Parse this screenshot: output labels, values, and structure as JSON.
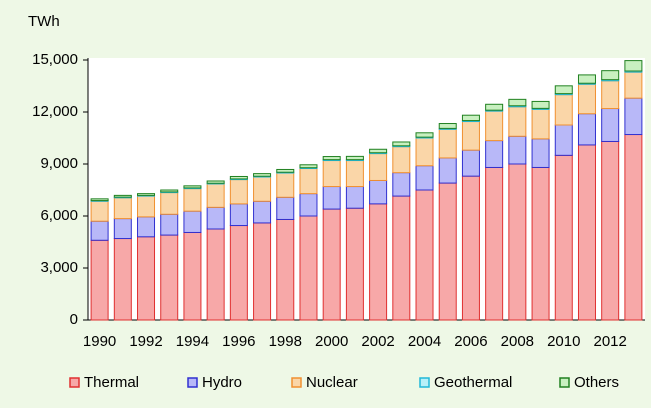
{
  "chart_data": {
    "type": "stacked_bar",
    "y_label": "TWh",
    "categories": [
      "1990",
      null,
      "1992",
      null,
      "1994",
      null,
      "1996",
      null,
      "1998",
      null,
      "2000",
      null,
      "2002",
      null,
      "2004",
      null,
      "2006",
      null,
      "2008",
      null,
      "2010",
      null,
      "2012",
      null
    ],
    "series": [
      {
        "name": "Thermal",
        "color": "#f7a8a8",
        "edge": "#e03030",
        "values": [
          4600,
          4700,
          4800,
          4900,
          5050,
          5250,
          5450,
          5600,
          5800,
          6000,
          6400,
          6450,
          6700,
          7150,
          7500,
          7900,
          8300,
          8800,
          9000,
          8800,
          9500,
          10100,
          10300,
          10700
        ]
      },
      {
        "name": "Hydro",
        "color": "#b8b8f8",
        "edge": "#3030d0",
        "values": [
          1100,
          1150,
          1150,
          1200,
          1230,
          1250,
          1250,
          1250,
          1280,
          1290,
          1300,
          1250,
          1350,
          1350,
          1400,
          1450,
          1500,
          1550,
          1600,
          1650,
          1750,
          1800,
          1900,
          2100
        ]
      },
      {
        "name": "Nuclear",
        "color": "#fad6a8",
        "edge": "#f09030",
        "values": [
          1150,
          1200,
          1200,
          1250,
          1300,
          1350,
          1400,
          1400,
          1400,
          1450,
          1500,
          1500,
          1550,
          1500,
          1600,
          1650,
          1650,
          1700,
          1700,
          1700,
          1750,
          1700,
          1600,
          1500
        ]
      },
      {
        "name": "Geothermal",
        "color": "#b8f0f8",
        "edge": "#20b8d8",
        "values": [
          40,
          40,
          40,
          40,
          40,
          40,
          40,
          45,
          45,
          45,
          50,
          50,
          50,
          50,
          50,
          55,
          55,
          55,
          60,
          60,
          60,
          60,
          65,
          65
        ]
      },
      {
        "name": "Others",
        "color": "#c8f0c0",
        "edge": "#208020",
        "values": [
          100,
          100,
          100,
          110,
          120,
          130,
          140,
          150,
          160,
          170,
          180,
          190,
          200,
          220,
          250,
          280,
          310,
          340,
          370,
          400,
          450,
          480,
          520,
          600
        ]
      }
    ],
    "ylim": [
      0,
      15000
    ],
    "yticks": [
      0,
      {
        "value": 3000,
        "label": "3,000"
      },
      {
        "value": 6000,
        "label": "6,000"
      },
      {
        "value": 9000,
        "label": "9,000"
      },
      {
        "value": 12000,
        "label": "12,000"
      },
      {
        "value": 15000,
        "label": "15,000"
      }
    ],
    "grid": false
  }
}
